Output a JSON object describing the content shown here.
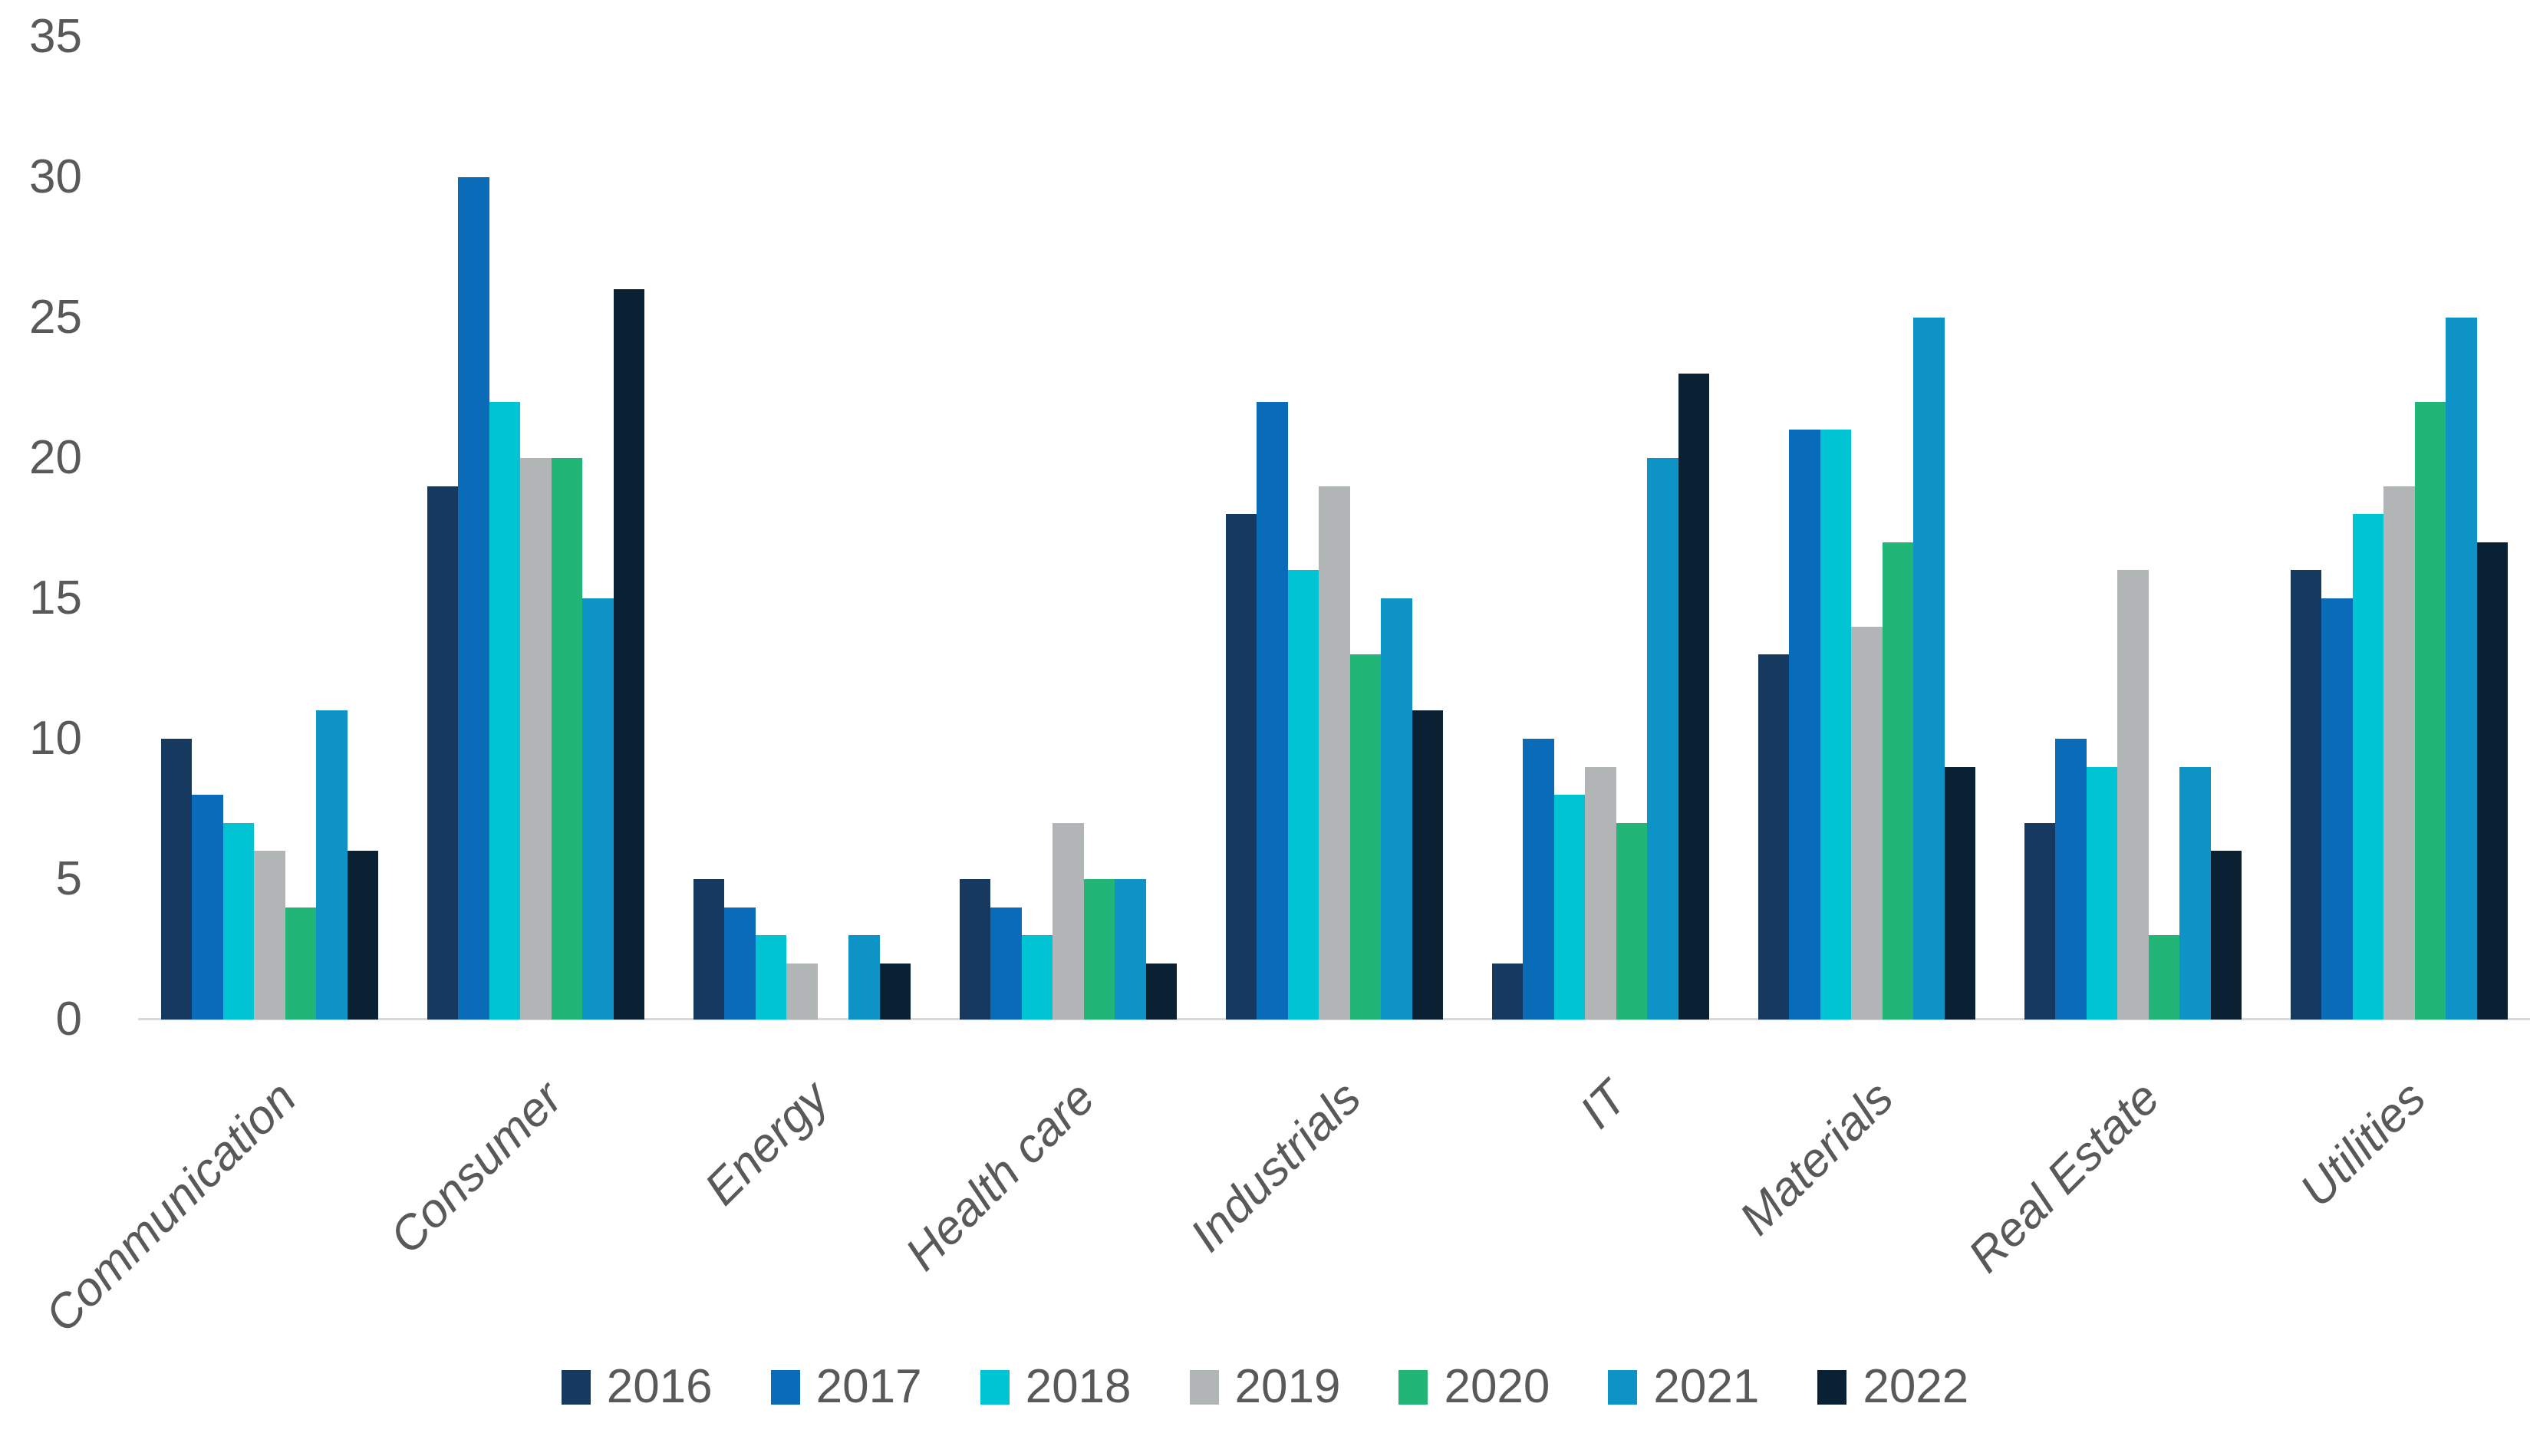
{
  "chart_data": {
    "type": "bar",
    "title": "",
    "xlabel": "",
    "ylabel": "",
    "categories": [
      "Communication",
      "Consumer",
      "Energy",
      "Health care",
      "Industrials",
      "IT",
      "Materials",
      "Real Estate",
      "Utilities"
    ],
    "series": [
      {
        "name": "2016",
        "color": "#15395f",
        "values": [
          10,
          19,
          5,
          5,
          18,
          2,
          13,
          7,
          16
        ]
      },
      {
        "name": "2017",
        "color": "#0a6cb8",
        "values": [
          8,
          30,
          4,
          4,
          22,
          10,
          21,
          10,
          15
        ]
      },
      {
        "name": "2018",
        "color": "#00c4d4",
        "values": [
          7,
          22,
          3,
          3,
          16,
          8,
          21,
          9,
          18
        ]
      },
      {
        "name": "2019",
        "color": "#b2b5b6",
        "values": [
          6,
          20,
          2,
          7,
          19,
          9,
          14,
          16,
          19
        ]
      },
      {
        "name": "2020",
        "color": "#21b577",
        "values": [
          4,
          20,
          0,
          5,
          13,
          7,
          17,
          3,
          22
        ]
      },
      {
        "name": "2021",
        "color": "#0e93c6",
        "values": [
          11,
          15,
          3,
          5,
          15,
          20,
          25,
          9,
          25
        ]
      },
      {
        "name": "2022",
        "color": "#0a2133",
        "values": [
          6,
          26,
          2,
          2,
          11,
          23,
          9,
          6,
          17
        ]
      }
    ],
    "ylim": [
      0,
      35
    ],
    "yticks": [
      0,
      5,
      10,
      15,
      20,
      25,
      30,
      35
    ],
    "grid": false,
    "legend_position": "bottom",
    "axis_line_color": "#d9d9d9",
    "label_color": "#595959"
  }
}
